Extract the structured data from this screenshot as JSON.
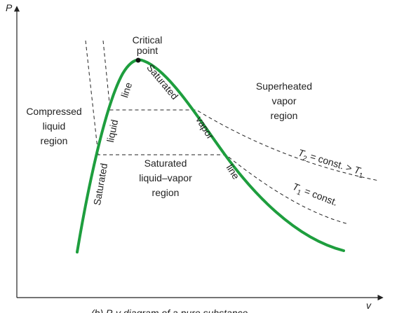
{
  "axes": {
    "y_label": "P",
    "x_label": "v"
  },
  "critical_point": [
    "Critical",
    "point"
  ],
  "regions": [
    {
      "lines": [
        "Superheated",
        "vapor",
        "region"
      ]
    },
    {
      "lines": [
        "Compressed",
        "liquid",
        "region"
      ]
    },
    {
      "lines": [
        "Saturated",
        "liquid–vapor",
        "region"
      ]
    }
  ],
  "saturated_liquid_line": [
    "Saturated",
    "liquid",
    "line"
  ],
  "saturated_vapor_line": [
    "Saturated",
    "vapor",
    "line"
  ],
  "isotherms": [
    {
      "parts": [
        "T",
        "2",
        " = const. > ",
        "T",
        "1"
      ]
    },
    {
      "parts": [
        "T",
        "1",
        " = const."
      ]
    }
  ],
  "caption": "(b) P-v diagram of a pure substance"
}
